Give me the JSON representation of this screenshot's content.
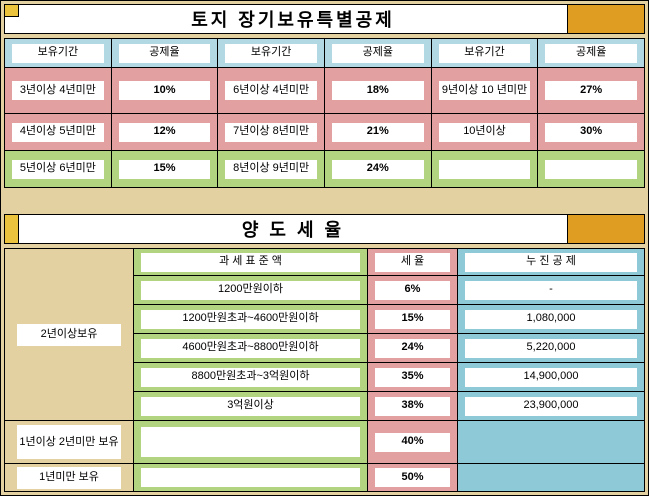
{
  "land_table": {
    "title": "토지 장기보유특별공제",
    "headers": [
      "보유기간",
      "공제율",
      "보유기간",
      "공제율",
      "보유기간",
      "공제율"
    ],
    "rows": [
      [
        "3년이상 4년미만",
        "10%",
        "6년이상 4년미만",
        "18%",
        "9년이상 10 년미만",
        "27%"
      ],
      [
        "4년이상 5년미만",
        "12%",
        "7년이상 8년미만",
        "21%",
        "10년이상",
        "30%"
      ],
      [
        "5년이상 6년미만",
        "15%",
        "8년이상 9년미만",
        "24%",
        "",
        ""
      ]
    ]
  },
  "transfer_table": {
    "title": "양 도 세 율",
    "col_headers": {
      "base": "과 세 표 준 액",
      "rate": "세 율",
      "deduction": "누 진 공 제"
    },
    "hold_labels": {
      "two_year": "2년이상보유",
      "one_two_year": "1년이상 2년미만 보유",
      "under_one_year": "1년미만 보유"
    },
    "rows": [
      {
        "base": "1200만원이하",
        "rate": "6%",
        "deduction": "-"
      },
      {
        "base": "1200만원초과~4600만원이하",
        "rate": "15%",
        "deduction": "1,080,000"
      },
      {
        "base": "4600만원초과~8800만원이하",
        "rate": "24%",
        "deduction": "5,220,000"
      },
      {
        "base": "8800만원초과~3억원이하",
        "rate": "35%",
        "deduction": "14,900,000"
      },
      {
        "base": "3억원이상",
        "rate": "38%",
        "deduction": "23,900,000"
      }
    ],
    "extra_rows": [
      {
        "rate": "40%"
      },
      {
        "rate": "50%"
      }
    ]
  },
  "colors": {
    "page_bg": "#e3d1a1",
    "accent_left": "#ecc33c",
    "accent_right": "#df9d22",
    "header_blue": "#b2d8e4",
    "frame_pink": "#e2a0a0",
    "frame_green": "#b2d37f",
    "frame_teal": "#8ec9d8"
  }
}
